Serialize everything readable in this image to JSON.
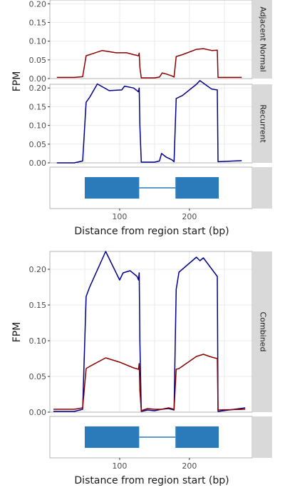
{
  "chart_data": [
    {
      "type": "line",
      "ylabel": "FPM",
      "ylim": [
        0,
        0.21
      ],
      "xlim": [
        0,
        290
      ],
      "yticks": [
        0,
        0.05,
        0.1,
        0.15,
        0.2
      ],
      "ytick_labels": [
        "0.00",
        "0.05",
        "0.10",
        "0.15",
        "0.20"
      ],
      "facets": [
        {
          "strip": "Adjacent Normal",
          "series": [
            {
              "color": "#8b0000",
              "x": [
                10,
                20,
                35,
                47,
                52,
                57,
                75,
                95,
                110,
                120,
                127,
                128,
                129,
                131,
                150,
                157,
                161,
                167,
                175,
                178,
                181,
                190,
                210,
                220,
                232,
                240,
                241,
                275
              ],
              "y": [
                0.003,
                0.003,
                0.003,
                0.005,
                0.061,
                0.064,
                0.075,
                0.069,
                0.069,
                0.064,
                0.061,
                0.068,
                0.03,
                0.002,
                0.002,
                0.004,
                0.015,
                0.012,
                0.007,
                0.004,
                0.059,
                0.064,
                0.078,
                0.08,
                0.075,
                0.076,
                0.003,
                0.003
              ]
            }
          ]
        },
        {
          "strip": "Recurrent",
          "series": [
            {
              "color": "#00008b",
              "x": [
                10,
                20,
                35,
                47,
                52,
                57,
                68,
                85,
                103,
                107,
                120,
                127,
                128,
                129,
                131,
                150,
                157,
                160,
                167,
                175,
                178,
                181,
                190,
                210,
                215,
                220,
                232,
                240,
                241,
                275
              ],
              "y": [
                0.0,
                0.0,
                0.0,
                0.005,
                0.162,
                0.175,
                0.211,
                0.193,
                0.195,
                0.205,
                0.2,
                0.19,
                0.2,
                0.1,
                0.002,
                0.002,
                0.005,
                0.025,
                0.015,
                0.008,
                0.003,
                0.172,
                0.18,
                0.21,
                0.22,
                0.213,
                0.197,
                0.195,
                0.003,
                0.006
              ]
            }
          ]
        }
      ]
    },
    {
      "type": "line",
      "xlabel": "Distance from region start (bp)",
      "ylabel": "FPM",
      "ylim": [
        0,
        0.225
      ],
      "xlim": [
        0,
        290
      ],
      "xticks": [
        100,
        200
      ],
      "yticks": [
        0,
        0.05,
        0.1,
        0.15,
        0.2
      ],
      "ytick_labels": [
        "0.00",
        "0.05",
        "0.10",
        "0.15",
        "0.20"
      ],
      "facets": [
        {
          "strip": "Combined",
          "series": [
            {
              "color": "#00008b",
              "x": [
                5,
                20,
                35,
                47,
                52,
                57,
                80,
                100,
                105,
                115,
                125,
                127,
                128,
                129,
                131,
                140,
                150,
                160,
                170,
                178,
                181,
                185,
                210,
                215,
                220,
                240,
                241,
                280
              ],
              "y": [
                0.001,
                0.001,
                0.001,
                0.004,
                0.162,
                0.175,
                0.225,
                0.185,
                0.195,
                0.198,
                0.19,
                0.185,
                0.195,
                0.1,
                0.001,
                0.003,
                0.002,
                0.004,
                0.005,
                0.003,
                0.172,
                0.196,
                0.217,
                0.212,
                0.216,
                0.19,
                0.001,
                0.006
              ]
            },
            {
              "color": "#8b0000",
              "x": [
                5,
                20,
                35,
                47,
                52,
                57,
                80,
                100,
                120,
                127,
                128,
                129,
                131,
                140,
                150,
                160,
                170,
                178,
                181,
                185,
                210,
                220,
                232,
                240,
                241,
                280
              ],
              "y": [
                0.004,
                0.004,
                0.004,
                0.006,
                0.061,
                0.064,
                0.076,
                0.07,
                0.062,
                0.06,
                0.068,
                0.03,
                0.002,
                0.005,
                0.004,
                0.004,
                0.006,
                0.004,
                0.06,
                0.061,
                0.078,
                0.081,
                0.077,
                0.075,
                0.003,
                0.004
              ]
            }
          ]
        }
      ]
    }
  ],
  "gene_model": {
    "exons": [
      [
        50,
        128
      ],
      [
        180,
        242
      ]
    ],
    "intron": [
      128,
      180
    ],
    "color": "#2b7bba"
  }
}
